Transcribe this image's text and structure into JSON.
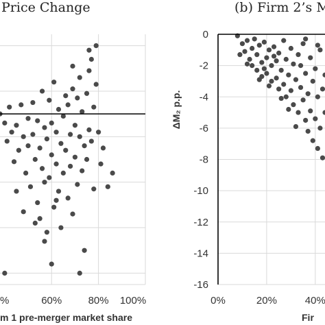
{
  "chart_data": [
    {
      "panel": "a",
      "type": "scatter",
      "title": "Price Change",
      "xlabel": "m 1 pre-merger market share",
      "ylabel": "",
      "x_ticks": [
        "%",
        "60%",
        "80%",
        "100%"
      ],
      "xlim": [
        0.38,
        1.0
      ],
      "ylim": [
        -7.5,
        3.5
      ],
      "grid": true,
      "reference_line_y": 0,
      "points": [
        [
          0.38,
          0.0
        ],
        [
          0.4,
          -0.4
        ],
        [
          0.41,
          -1.2
        ],
        [
          0.42,
          0.3
        ],
        [
          0.43,
          -0.8
        ],
        [
          0.44,
          -2.1
        ],
        [
          0.45,
          -0.5
        ],
        [
          0.46,
          -1.6
        ],
        [
          0.47,
          0.4
        ],
        [
          0.48,
          -1.0
        ],
        [
          0.49,
          -2.6
        ],
        [
          0.5,
          -0.2
        ],
        [
          0.5,
          -1.4
        ],
        [
          0.51,
          -3.2
        ],
        [
          0.52,
          0.5
        ],
        [
          0.52,
          -0.9
        ],
        [
          0.53,
          -2.0
        ],
        [
          0.54,
          -3.9
        ],
        [
          0.54,
          -0.3
        ],
        [
          0.55,
          -1.5
        ],
        [
          0.55,
          -4.6
        ],
        [
          0.56,
          1.0
        ],
        [
          0.56,
          -2.4
        ],
        [
          0.57,
          -0.6
        ],
        [
          0.57,
          -3.0
        ],
        [
          0.58,
          -5.2
        ],
        [
          0.58,
          -1.1
        ],
        [
          0.59,
          0.6
        ],
        [
          0.59,
          -2.8
        ],
        [
          0.6,
          -0.4
        ],
        [
          0.6,
          -1.8
        ],
        [
          0.61,
          -4.1
        ],
        [
          0.61,
          1.4
        ],
        [
          0.62,
          -0.8
        ],
        [
          0.62,
          -2.2
        ],
        [
          0.63,
          -3.4
        ],
        [
          0.63,
          0.2
        ],
        [
          0.64,
          -1.3
        ],
        [
          0.64,
          -5.0
        ],
        [
          0.65,
          -0.1
        ],
        [
          0.65,
          -2.6
        ],
        [
          0.66,
          0.8
        ],
        [
          0.66,
          -1.6
        ],
        [
          0.67,
          -3.7
        ],
        [
          0.67,
          0.4
        ],
        [
          0.68,
          -0.9
        ],
        [
          0.68,
          -2.3
        ],
        [
          0.69,
          1.1
        ],
        [
          0.69,
          -4.4
        ],
        [
          0.7,
          -0.5
        ],
        [
          0.7,
          -1.9
        ],
        [
          0.71,
          0.7
        ],
        [
          0.71,
          -3.1
        ],
        [
          0.72,
          -1.0
        ],
        [
          0.72,
          1.6
        ],
        [
          0.73,
          -2.5
        ],
        [
          0.73,
          0.1
        ],
        [
          0.74,
          -1.4
        ],
        [
          0.74,
          -6.0
        ],
        [
          0.75,
          0.9
        ],
        [
          0.75,
          -2.0
        ],
        [
          0.76,
          1.9
        ],
        [
          0.76,
          -0.7
        ],
        [
          0.77,
          2.4
        ],
        [
          0.77,
          -1.2
        ],
        [
          0.78,
          0.3
        ],
        [
          0.78,
          -3.3
        ],
        [
          0.79,
          1.3
        ],
        [
          0.8,
          -0.8
        ],
        [
          0.81,
          -2.2
        ],
        [
          0.82,
          -1.5
        ],
        [
          0.84,
          -3.2
        ],
        [
          0.86,
          -2.6
        ],
        [
          0.79,
          3.0
        ],
        [
          0.76,
          2.8
        ],
        [
          0.69,
          2.1
        ],
        [
          0.62,
          -3.8
        ],
        [
          0.53,
          -4.8
        ],
        [
          0.57,
          -5.6
        ],
        [
          0.45,
          -3.4
        ],
        [
          0.48,
          -4.3
        ],
        [
          0.6,
          -6.6
        ],
        [
          0.72,
          -7.0
        ],
        [
          0.4,
          -7.0
        ]
      ]
    },
    {
      "panel": "b",
      "type": "scatter",
      "title": "(b) Firm 2’s M",
      "xlabel": "Fir",
      "ylabel": "ΔM₂ p.p.",
      "x_ticks": [
        "0%",
        "20%",
        "40%"
      ],
      "y_ticks": [
        "0",
        "-2",
        "-4",
        "-6",
        "-8",
        "-10",
        "-12",
        "-14",
        "-16"
      ],
      "xlim": [
        0,
        0.44
      ],
      "ylim": [
        -16,
        0
      ],
      "grid": true,
      "points": [
        [
          0.08,
          -0.1
        ],
        [
          0.09,
          -1.3
        ],
        [
          0.1,
          -0.6
        ],
        [
          0.11,
          -1.1
        ],
        [
          0.12,
          -0.4
        ],
        [
          0.13,
          -1.6
        ],
        [
          0.14,
          -0.9
        ],
        [
          0.14,
          -2.0
        ],
        [
          0.15,
          -0.3
        ],
        [
          0.16,
          -1.3
        ],
        [
          0.16,
          -2.3
        ],
        [
          0.17,
          -0.7
        ],
        [
          0.18,
          -1.8
        ],
        [
          0.18,
          -2.7
        ],
        [
          0.19,
          -0.5
        ],
        [
          0.2,
          -1.5
        ],
        [
          0.2,
          -2.5
        ],
        [
          0.21,
          -1.0
        ],
        [
          0.22,
          -2.0
        ],
        [
          0.22,
          -3.0
        ],
        [
          0.23,
          -0.8
        ],
        [
          0.24,
          -1.7
        ],
        [
          0.24,
          -2.8
        ],
        [
          0.25,
          -3.5
        ],
        [
          0.25,
          -1.2
        ],
        [
          0.26,
          -2.3
        ],
        [
          0.27,
          -0.4
        ],
        [
          0.27,
          -3.2
        ],
        [
          0.28,
          -1.6
        ],
        [
          0.28,
          -4.0
        ],
        [
          0.29,
          -2.6
        ],
        [
          0.3,
          -0.9
        ],
        [
          0.3,
          -3.6
        ],
        [
          0.31,
          -1.9
        ],
        [
          0.31,
          -4.5
        ],
        [
          0.32,
          -2.9
        ],
        [
          0.33,
          -1.3
        ],
        [
          0.33,
          -5.0
        ],
        [
          0.34,
          -3.4
        ],
        [
          0.34,
          -2.0
        ],
        [
          0.35,
          -4.2
        ],
        [
          0.35,
          -0.6
        ],
        [
          0.36,
          -5.5
        ],
        [
          0.36,
          -2.5
        ],
        [
          0.37,
          -3.8
        ],
        [
          0.37,
          -6.2
        ],
        [
          0.38,
          -1.5
        ],
        [
          0.38,
          -4.9
        ],
        [
          0.39,
          -3.0
        ],
        [
          0.39,
          -6.8
        ],
        [
          0.4,
          -2.2
        ],
        [
          0.4,
          -5.4
        ],
        [
          0.41,
          -4.0
        ],
        [
          0.41,
          -7.3
        ],
        [
          0.42,
          -1.0
        ],
        [
          0.42,
          -6.0
        ],
        [
          0.43,
          -3.5
        ],
        [
          0.43,
          -7.9
        ],
        [
          0.44,
          -5.0
        ],
        [
          0.44,
          -2.6
        ],
        [
          0.12,
          -1.9
        ],
        [
          0.17,
          -2.9
        ],
        [
          0.21,
          -3.3
        ],
        [
          0.26,
          -4.1
        ],
        [
          0.32,
          -5.9
        ],
        [
          0.29,
          -4.8
        ],
        [
          0.23,
          -1.4
        ],
        [
          0.19,
          -2.2
        ],
        [
          0.36,
          -0.3
        ],
        [
          0.41,
          -0.7
        ]
      ]
    }
  ]
}
